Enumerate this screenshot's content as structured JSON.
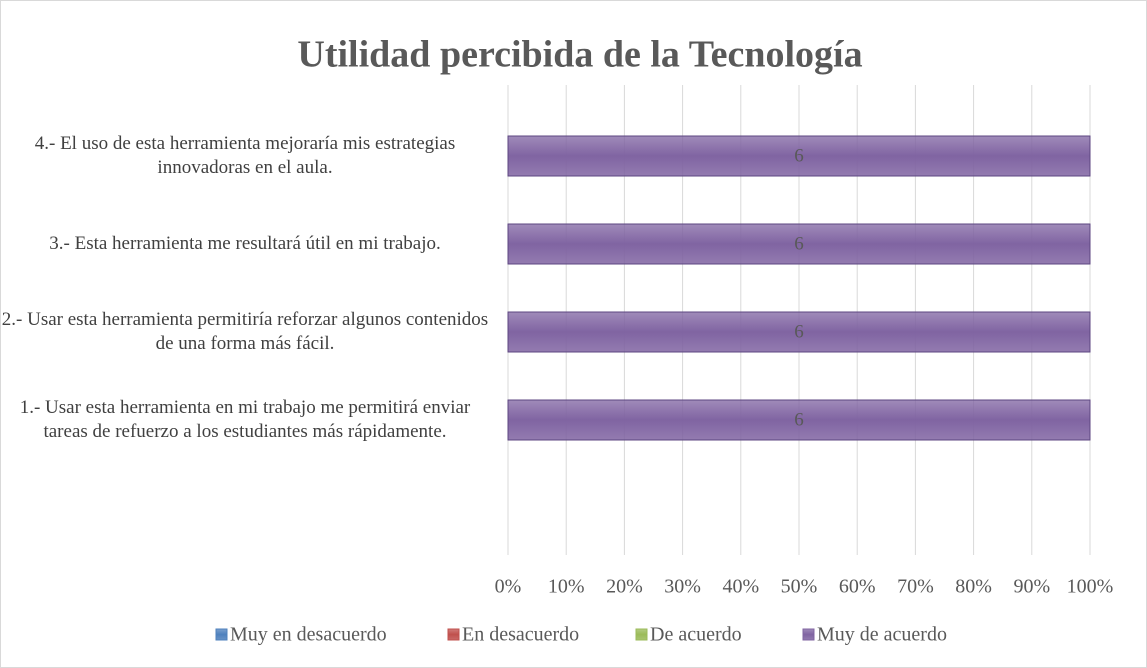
{
  "chart_data": {
    "type": "bar_stacked_percent",
    "orientation": "horizontal",
    "title": "Utilidad percibida de la Tecnología",
    "categories": [
      "1.- Usar esta herramienta en mi trabajo me permitirá enviar tareas de refuerzo a los estudiantes más rápidamente.",
      "2.- Usar esta herramienta permitiría reforzar algunos contenidos de una forma más fácil.",
      "3.- Esta herramienta me resultará útil en mi trabajo.",
      "4.- El uso de esta herramienta mejoraría mis estrategias innovadoras en el aula."
    ],
    "series": [
      {
        "name": "Muy en desacuerdo",
        "color": "#4f81bd",
        "values": [
          0,
          0,
          0,
          0
        ]
      },
      {
        "name": "En desacuerdo",
        "color": "#c0504d",
        "values": [
          0,
          0,
          0,
          0
        ]
      },
      {
        "name": "De acuerdo",
        "color": "#9bbb59",
        "values": [
          0,
          0,
          0,
          0
        ]
      },
      {
        "name": "Muy de acuerdo",
        "color": "#8064a2",
        "values": [
          6,
          6,
          6,
          6
        ]
      }
    ],
    "xlim": [
      0,
      100
    ],
    "xticks": [
      {
        "value": 0,
        "label": "0%"
      },
      {
        "value": 10,
        "label": "10%"
      },
      {
        "value": 20,
        "label": "20%"
      },
      {
        "value": 30,
        "label": "30%"
      },
      {
        "value": 40,
        "label": "40%"
      },
      {
        "value": 50,
        "label": "50%"
      },
      {
        "value": 60,
        "label": "60%"
      },
      {
        "value": 70,
        "label": "70%"
      },
      {
        "value": 80,
        "label": "80%"
      },
      {
        "value": 90,
        "label": "90%"
      },
      {
        "value": 100,
        "label": "100%"
      }
    ],
    "grid": true,
    "legend": "bottom"
  }
}
